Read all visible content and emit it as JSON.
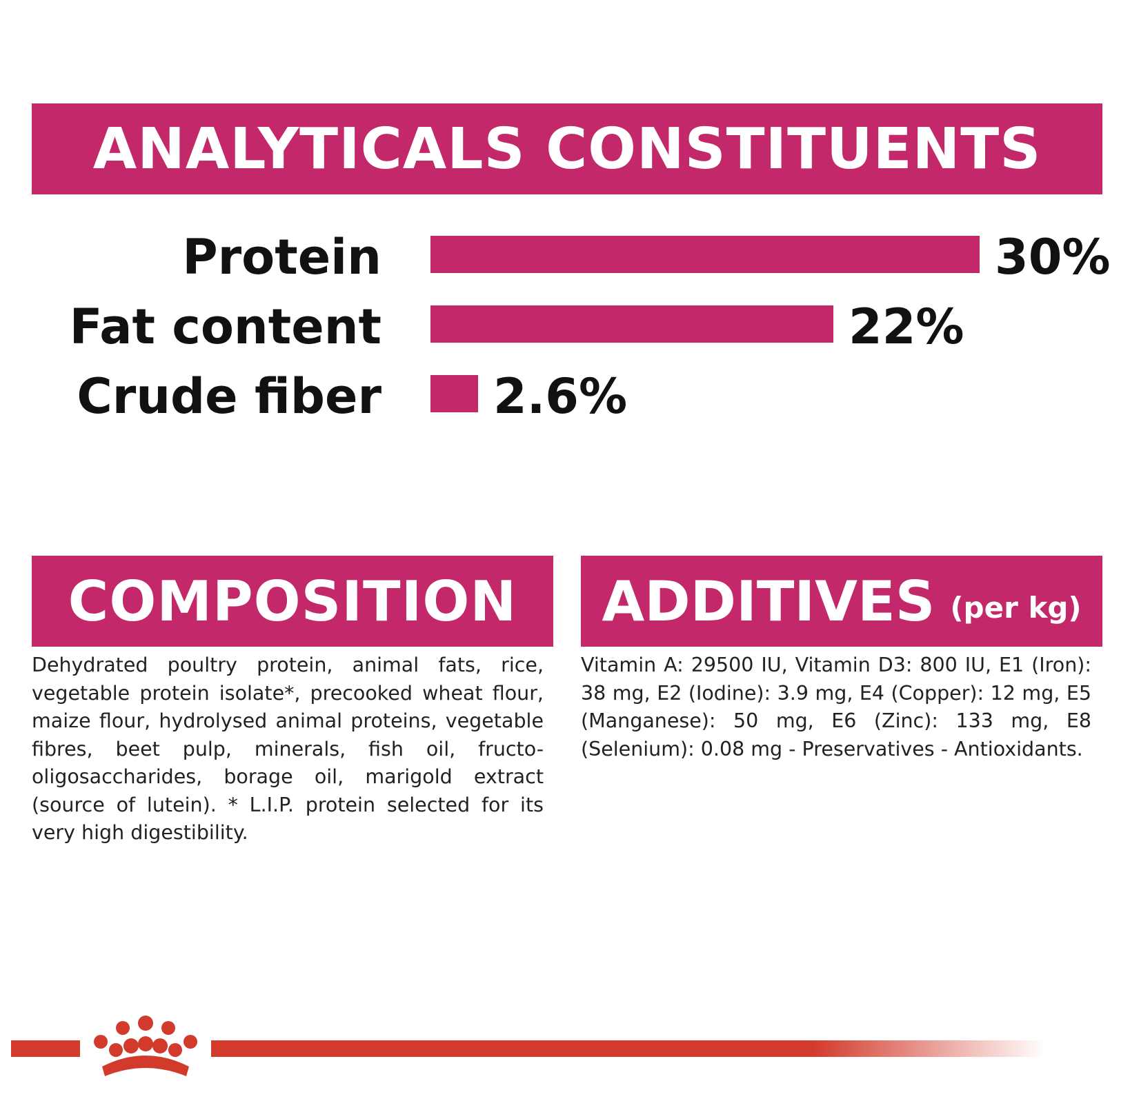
{
  "headings": {
    "analytical": "ANALYTICALS CONSTITUENTS",
    "composition": "COMPOSITION",
    "additives": "ADDITIVES",
    "additives_suffix": "(per kg)"
  },
  "colors": {
    "accent": "#c2286a",
    "footer_line": "#d23a2b",
    "logo": "#d23a2b"
  },
  "chart_data": {
    "type": "bar",
    "orientation": "horizontal",
    "categories": [
      "Protein",
      "Fat content",
      "Crude fiber"
    ],
    "values": [
      30,
      22,
      2.6
    ],
    "value_labels": [
      "30%",
      "22%",
      "2.6%"
    ],
    "unit": "%",
    "xlim": [
      0,
      30
    ],
    "grid": false,
    "legend": "none"
  },
  "composition_text": "Dehydrated poultry protein, animal fats, rice, vegetable protein isolate*, precooked wheat flour, maize flour, hydrolysed animal proteins, vegetable fibres, beet pulp, minerals, fish oil, fructo-oligosaccharides, borage oil, marigold extract (source of lutein). * L.I.P. protein selected for its very high digestibility.",
  "additives_text": "Vitamin A: 29500 IU, Vitamin D3: 800 IU, E1 (Iron): 38 mg, E2 (Iodine): 3.9 mg, E4 (Copper): 12 mg, E5 (Manganese): 50 mg, E6 (Zinc): 133 mg, E8 (Selenium): 0.08 mg - Preservatives - Antioxidants.",
  "footer": {
    "logo_icon": "royal-crown-logo-icon"
  }
}
